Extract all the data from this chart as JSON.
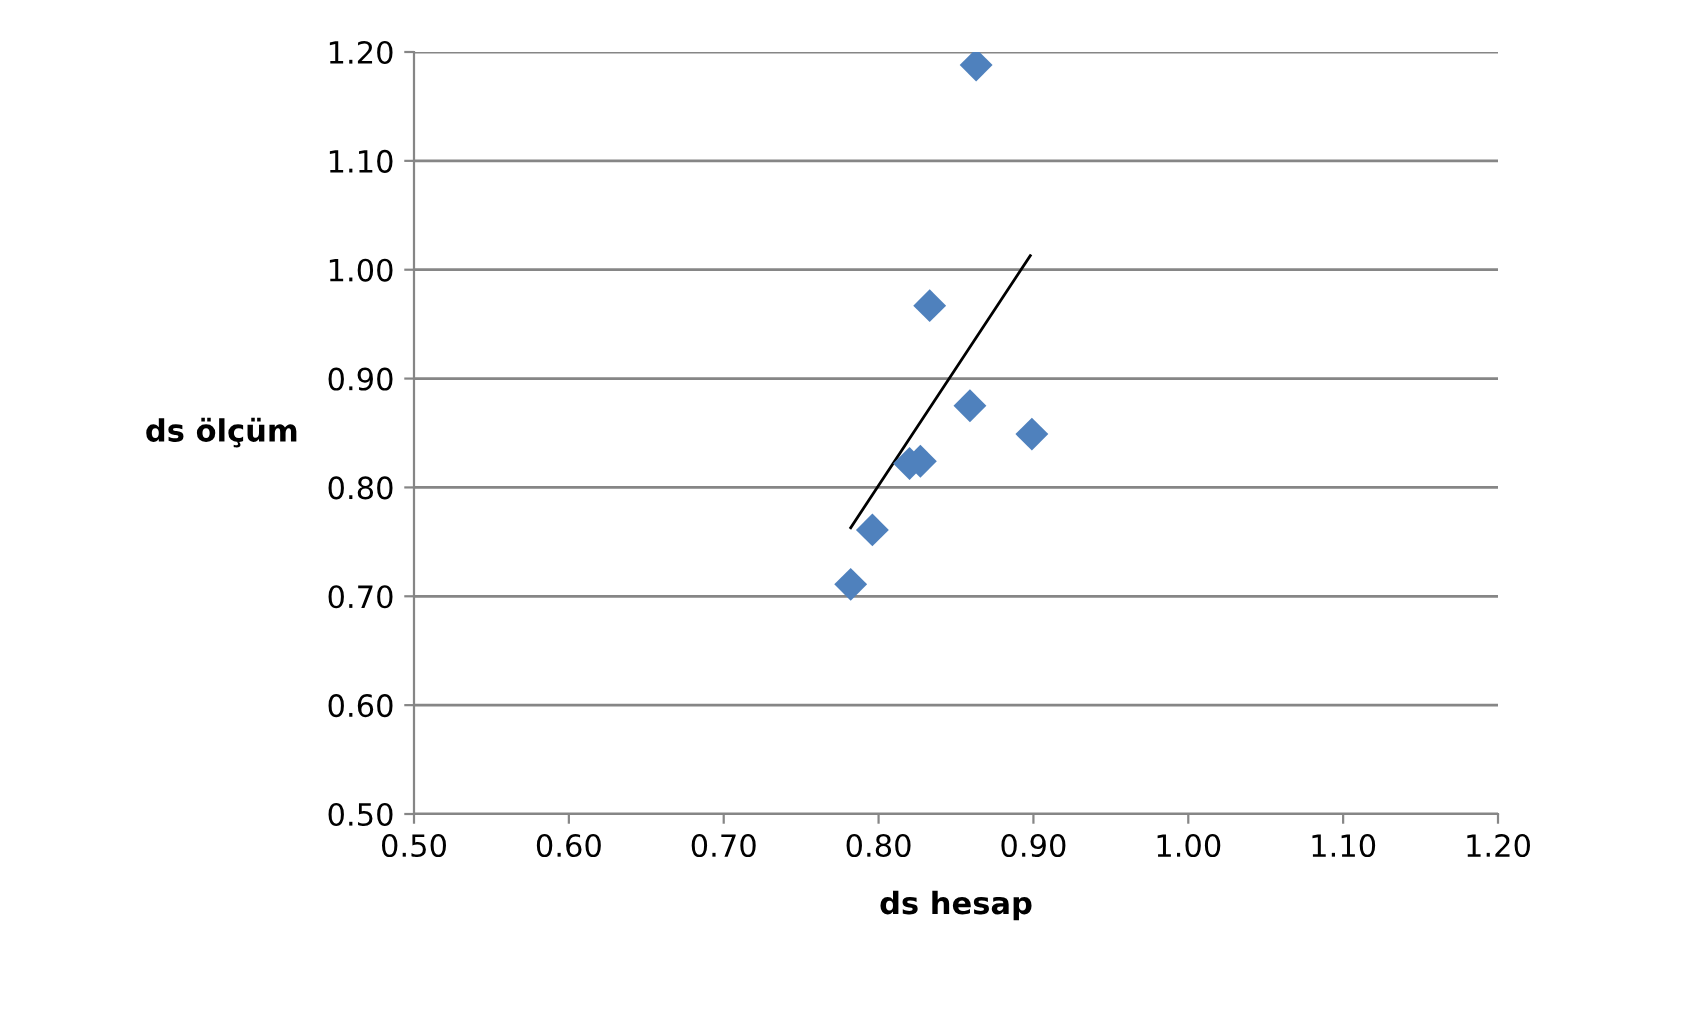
{
  "chart_data": {
    "type": "scatter",
    "xlabel": "ds hesap",
    "ylabel": "ds ölçüm",
    "xlim": [
      0.5,
      1.2
    ],
    "xticks": [
      {
        "value": 0.5,
        "label": "0.50"
      },
      {
        "value": 0.6,
        "label": "0.60"
      },
      {
        "value": 0.7,
        "label": "0.70"
      },
      {
        "value": 0.8,
        "label": "0.80"
      },
      {
        "value": 0.9,
        "label": "0.90"
      },
      {
        "value": 1.0,
        "label": "1.00"
      },
      {
        "value": 1.1,
        "label": "1.10"
      },
      {
        "value": 1.2,
        "label": "1.20"
      }
    ],
    "ylim": [
      0.5,
      1.2
    ],
    "yticks": [
      {
        "value": 0.5,
        "label": "0.50"
      },
      {
        "value": 0.6,
        "label": "0.60"
      },
      {
        "value": 0.7,
        "label": "0.70"
      },
      {
        "value": 0.8,
        "label": "0.80"
      },
      {
        "value": 0.9,
        "label": "0.90"
      },
      {
        "value": 1.0,
        "label": "1.00"
      },
      {
        "value": 1.1,
        "label": "1.10"
      },
      {
        "value": 1.2,
        "label": "1.20"
      }
    ],
    "grid": "y",
    "legend": false,
    "marker": "diamond",
    "series": [
      {
        "color": "#4f81bd",
        "x": [
          0.782,
          0.796,
          0.82,
          0.827,
          0.833,
          0.859,
          0.899,
          0.863
        ],
        "values": [
          0.711,
          0.761,
          0.822,
          0.824,
          0.967,
          0.875,
          0.849,
          1.188
        ]
      },
      {
        "type": "line",
        "color": "#000000",
        "marker": "none",
        "x": [
          0.782,
          0.898
        ],
        "values": [
          0.763,
          1.013
        ]
      }
    ]
  }
}
